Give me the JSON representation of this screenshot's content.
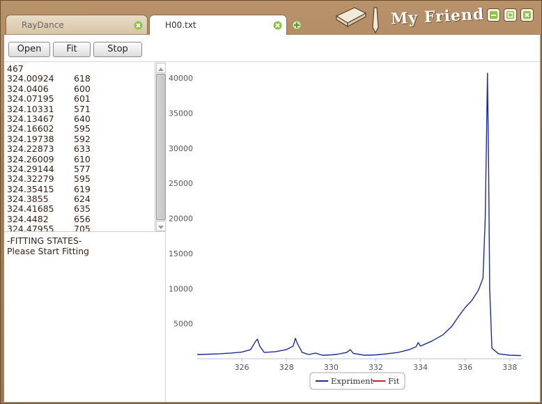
{
  "window": {
    "brand": "My Friend",
    "tabs": [
      {
        "label": "RayDance",
        "active": false
      },
      {
        "label": "H00.txt",
        "active": true
      }
    ]
  },
  "toolbar": {
    "open_label": "Open",
    "fit_label": "Fit",
    "stop_label": "Stop"
  },
  "data_list": {
    "count": "467",
    "rows": [
      [
        "324.00924",
        "618"
      ],
      [
        "324.0406",
        "600"
      ],
      [
        "324.07195",
        "601"
      ],
      [
        "324.10331",
        "571"
      ],
      [
        "324.13467",
        "640"
      ],
      [
        "324.16602",
        "595"
      ],
      [
        "324.19738",
        "592"
      ],
      [
        "324.22873",
        "633"
      ],
      [
        "324.26009",
        "610"
      ],
      [
        "324.29144",
        "577"
      ],
      [
        "324.32279",
        "595"
      ],
      [
        "324.35415",
        "619"
      ],
      [
        "324.3855",
        "624"
      ],
      [
        "324.41685",
        "635"
      ],
      [
        "324.4482",
        "656"
      ],
      [
        "324.47955",
        "705"
      ]
    ]
  },
  "fit_status": {
    "header": "-FITTING STATES-",
    "message": "Please Start Fitting"
  },
  "chart_data": {
    "type": "line",
    "xlim": [
      324,
      338.6
    ],
    "ylim": [
      0,
      41500
    ],
    "x_ticks": [
      "326",
      "328",
      "330",
      "332",
      "334",
      "336",
      "338"
    ],
    "y_ticks": [
      "5000",
      "10000",
      "15000",
      "20000",
      "25000",
      "30000",
      "35000",
      "40000"
    ],
    "legend_position": "bottom-center",
    "series": [
      {
        "name": "Expriment",
        "color": "#1a2a9a",
        "points": [
          [
            324.0,
            600
          ],
          [
            324.5,
            650
          ],
          [
            325.0,
            700
          ],
          [
            325.5,
            800
          ],
          [
            326.0,
            950
          ],
          [
            326.4,
            1300
          ],
          [
            326.6,
            2400
          ],
          [
            326.7,
            2800
          ],
          [
            326.8,
            1800
          ],
          [
            327.0,
            900
          ],
          [
            327.5,
            1000
          ],
          [
            328.0,
            1300
          ],
          [
            328.3,
            1800
          ],
          [
            328.4,
            2900
          ],
          [
            328.5,
            2100
          ],
          [
            328.7,
            900
          ],
          [
            329.0,
            600
          ],
          [
            329.3,
            800
          ],
          [
            329.6,
            500
          ],
          [
            330.0,
            550
          ],
          [
            330.3,
            650
          ],
          [
            330.7,
            900
          ],
          [
            330.85,
            1300
          ],
          [
            331.0,
            750
          ],
          [
            331.5,
            500
          ],
          [
            332.0,
            550
          ],
          [
            332.5,
            700
          ],
          [
            333.0,
            900
          ],
          [
            333.5,
            1300
          ],
          [
            333.8,
            1700
          ],
          [
            333.9,
            2300
          ],
          [
            334.0,
            1800
          ],
          [
            334.5,
            2500
          ],
          [
            335.0,
            3400
          ],
          [
            335.4,
            4600
          ],
          [
            335.7,
            6000
          ],
          [
            336.0,
            7300
          ],
          [
            336.3,
            8300
          ],
          [
            336.6,
            9800
          ],
          [
            336.8,
            11500
          ],
          [
            336.9,
            20000
          ],
          [
            336.95,
            30000
          ],
          [
            337.0,
            40700
          ],
          [
            337.05,
            28000
          ],
          [
            337.1,
            10000
          ],
          [
            337.2,
            1500
          ],
          [
            337.5,
            700
          ],
          [
            338.0,
            500
          ],
          [
            338.5,
            450
          ]
        ]
      },
      {
        "name": "Fit",
        "color": "#cc2222",
        "points": []
      }
    ]
  }
}
